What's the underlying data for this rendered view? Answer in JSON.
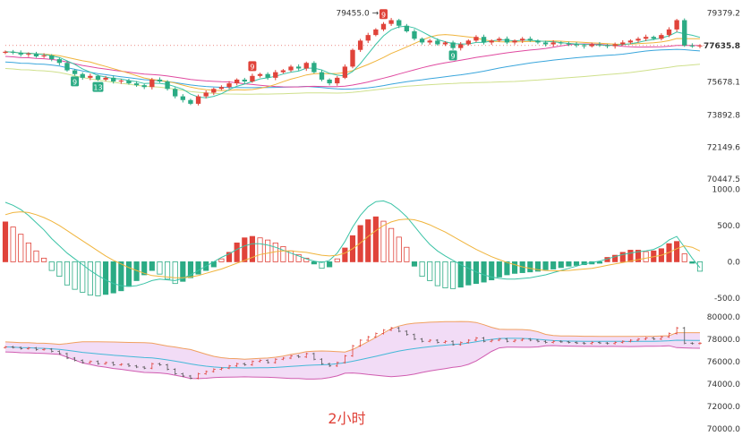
{
  "caption": "2小时",
  "colors": {
    "up": "#e0433a",
    "down": "#2bab84",
    "ma_short": "#3bc3a6",
    "ma_mid": "#f0b43c",
    "ma_long1": "#e04aa0",
    "ma_long2": "#3aa6dc",
    "ma_long3": "#cfe08c",
    "band_fill": "#f2dcf6",
    "band_upper": "#f0a060",
    "band_lower": "#d05cb0",
    "band_mid": "#44b8d8",
    "price_tag": "#e0433a"
  },
  "chart_data": [
    {
      "type": "candlestick",
      "panel": "price",
      "y_ticks": [
        "79379.2",
        "77635.8",
        "75678.1",
        "73892.8",
        "72149.6",
        "70447.5"
      ],
      "ylim": [
        70447.5,
        79700
      ],
      "current_price": "77635.8",
      "high_annotation": "79455.0",
      "markers": [
        {
          "label": "9",
          "bar": 49,
          "style": "red"
        },
        {
          "label": "9",
          "bar": 32,
          "style": "red"
        },
        {
          "label": "9",
          "bar": 9,
          "style": "green"
        },
        {
          "label": "13",
          "bar": 12,
          "style": "green"
        },
        {
          "label": "9",
          "bar": 58,
          "style": "green"
        }
      ],
      "closes": [
        77300,
        77250,
        77150,
        77200,
        77050,
        77100,
        76900,
        76700,
        76300,
        76100,
        75900,
        76000,
        75800,
        75900,
        75700,
        75750,
        75600,
        75500,
        75400,
        75800,
        75700,
        75300,
        74900,
        74700,
        74500,
        74900,
        75100,
        75300,
        75400,
        75600,
        75800,
        75700,
        76000,
        76100,
        75900,
        76200,
        76300,
        76500,
        76400,
        76700,
        76200,
        75800,
        75600,
        75900,
        76500,
        77400,
        77900,
        78200,
        78500,
        78800,
        79000,
        78700,
        78400,
        78000,
        77800,
        77900,
        77700,
        77800,
        77500,
        77700,
        77900,
        78100,
        77800,
        77900,
        78000,
        77800,
        77900,
        78000,
        77900,
        77800,
        77700,
        77800,
        77750,
        77700,
        77650,
        77600,
        77700,
        77650,
        77600,
        77700,
        77800,
        77900,
        78000,
        78100,
        78000,
        78200,
        78500,
        79000,
        77635.8,
        77600,
        77635.8
      ]
    },
    {
      "type": "macd",
      "panel": "macd",
      "y_ticks": [
        "1000.0",
        "500.0",
        "0.0",
        "-500.0"
      ],
      "ylim": [
        -650,
        1080
      ],
      "histogram": [
        550,
        480,
        380,
        260,
        150,
        50,
        -120,
        -200,
        -320,
        -380,
        -420,
        -460,
        -470,
        -450,
        -430,
        -400,
        -340,
        -260,
        -180,
        -120,
        -170,
        -240,
        -300,
        -270,
        -220,
        -170,
        -120,
        -70,
        40,
        130,
        260,
        330,
        350,
        330,
        300,
        260,
        210,
        150,
        100,
        50,
        -30,
        -90,
        -70,
        40,
        190,
        360,
        500,
        580,
        620,
        560,
        460,
        340,
        200,
        -60,
        -200,
        -260,
        -330,
        -360,
        -370,
        -350,
        -320,
        -300,
        -280,
        -250,
        -210,
        -180,
        -160,
        -150,
        -140,
        -130,
        -110,
        -100,
        -80,
        -60,
        -50,
        -40,
        -30,
        -20,
        60,
        90,
        130,
        160,
        160,
        140,
        150,
        180,
        250,
        280,
        110,
        -20,
        -130
      ],
      "dif": [
        820,
        780,
        720,
        640,
        540,
        440,
        320,
        220,
        120,
        40,
        -40,
        -120,
        -190,
        -250,
        -300,
        -330,
        -340,
        -330,
        -300,
        -260,
        -240,
        -250,
        -260,
        -230,
        -180,
        -120,
        -60,
        0,
        60,
        110,
        170,
        220,
        250,
        250,
        230,
        200,
        160,
        120,
        80,
        40,
        10,
        -10,
        20,
        120,
        280,
        480,
        640,
        760,
        830,
        840,
        800,
        720,
        620,
        490,
        360,
        240,
        150,
        80,
        20,
        -40,
        -90,
        -140,
        -180,
        -210,
        -230,
        -240,
        -240,
        -230,
        -220,
        -200,
        -180,
        -150,
        -120,
        -90,
        -60,
        -30,
        -10,
        10,
        40,
        70,
        100,
        120,
        140,
        150,
        170,
        220,
        300,
        350,
        200,
        50,
        -80
      ],
      "dea": [
        650,
        680,
        690,
        680,
        650,
        610,
        560,
        500,
        430,
        360,
        290,
        220,
        150,
        80,
        20,
        -30,
        -80,
        -120,
        -160,
        -190,
        -200,
        -210,
        -220,
        -220,
        -210,
        -190,
        -160,
        -130,
        -100,
        -60,
        -20,
        20,
        60,
        100,
        120,
        140,
        150,
        150,
        140,
        130,
        110,
        90,
        80,
        90,
        120,
        180,
        260,
        350,
        430,
        500,
        550,
        580,
        590,
        580,
        550,
        510,
        460,
        410,
        350,
        290,
        230,
        170,
        120,
        70,
        30,
        -10,
        -40,
        -70,
        -90,
        -110,
        -120,
        -125,
        -125,
        -120,
        -110,
        -100,
        -90,
        -70,
        -50,
        -30,
        -10,
        10,
        30,
        50,
        70,
        90,
        130,
        180,
        220,
        200,
        150
      ]
    },
    {
      "type": "bollinger",
      "panel": "boll",
      "y_ticks": [
        "80000.0",
        "78000.0",
        "76000.0",
        "74000.0",
        "72000.0",
        "70000.0"
      ],
      "ylim": [
        69900,
        80300
      ]
    }
  ]
}
